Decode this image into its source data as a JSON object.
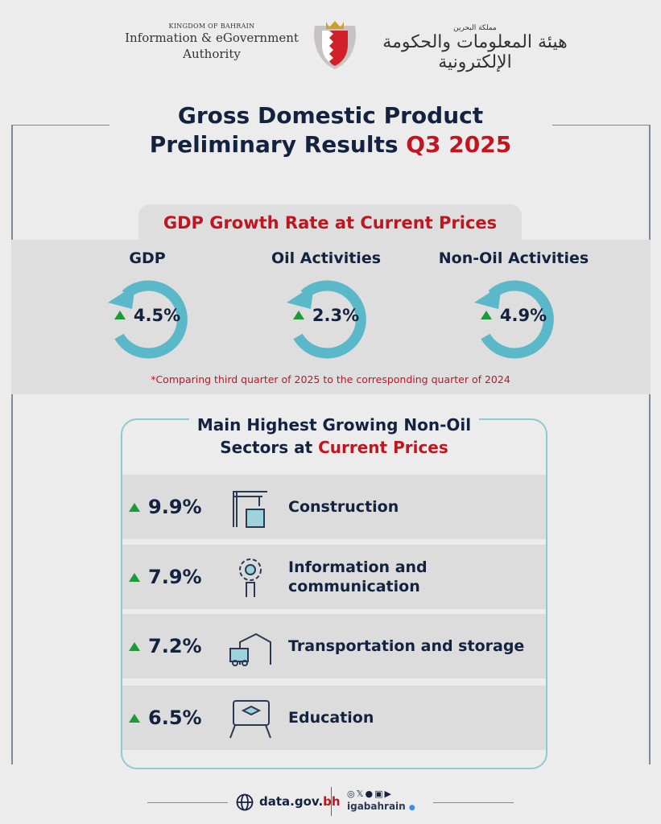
{
  "header": {
    "kingdom": "KINGDOM OF BAHRAIN",
    "authority_en": "Information & eGovernment Authority",
    "arabic_kingdom": "مملكة البحرين",
    "arabic_authority": "هيئة المعلومات والحكومة الإلكترونية"
  },
  "title": {
    "line1": "Gross Domestic Product",
    "line2_prefix": "Preliminary Results ",
    "line2_highlight": "Q3 2025"
  },
  "growth": {
    "heading": "GDP Growth Rate at Current Prices",
    "metrics": [
      {
        "label": "GDP",
        "value": "4.5%"
      },
      {
        "label": "Oil Activities",
        "value": "2.3%"
      },
      {
        "label": "Non-Oil Activities",
        "value": "4.9%"
      }
    ],
    "note": "*Comparing third quarter of 2025 to the corresponding quarter of 2024"
  },
  "sectors": {
    "heading_line1": "Main Highest Growing Non-Oil",
    "heading_line2_prefix": "Sectors at ",
    "heading_line2_highlight": "Current Prices",
    "items": [
      {
        "value": "9.9%",
        "name": "Construction",
        "icon": "crane-building-icon"
      },
      {
        "value": "7.9%",
        "name": "Information and communication",
        "icon": "gear-hand-icon"
      },
      {
        "value": "7.2%",
        "name": "Transportation and storage",
        "icon": "warehouse-truck-icon"
      },
      {
        "value": "6.5%",
        "name": "Education",
        "icon": "screen-graduation-icon"
      }
    ]
  },
  "footer": {
    "site_prefix": "data.gov.",
    "site_suffix": "bh",
    "handle": "igabahrain"
  },
  "colors": {
    "navy": "#13233f",
    "red": "#c0161f",
    "teal": "#5bb8c9",
    "green": "#1a9b38"
  }
}
